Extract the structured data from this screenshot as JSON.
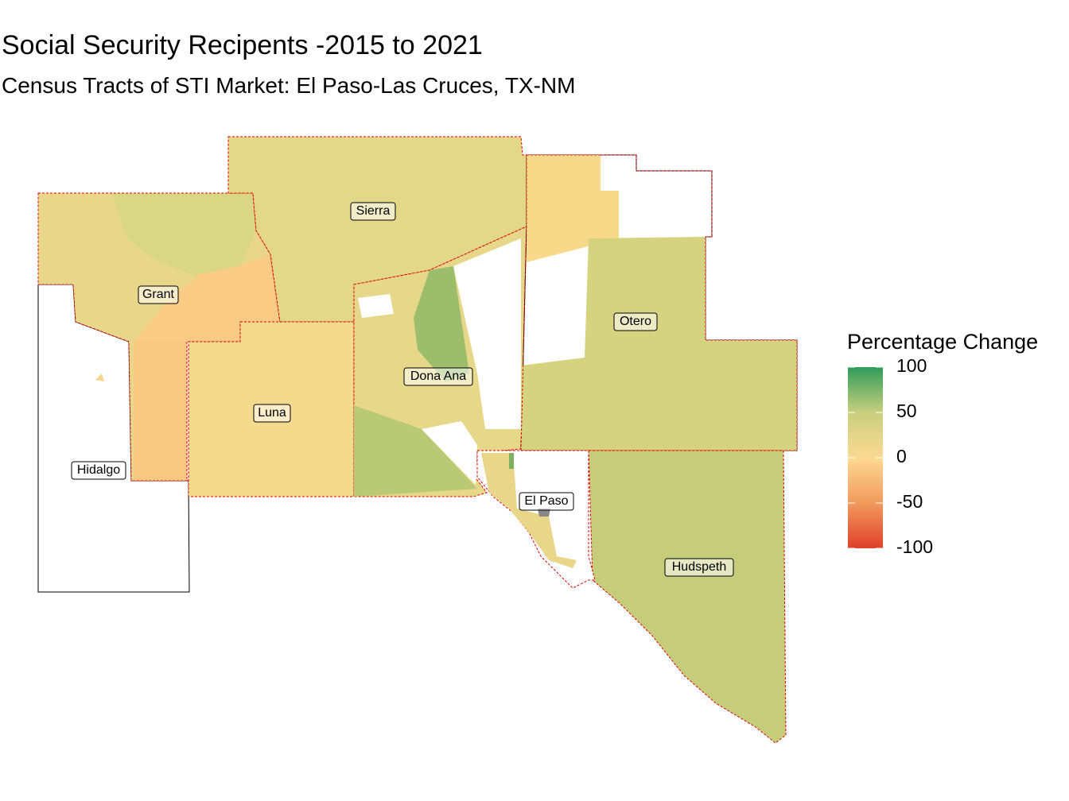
{
  "title": "Social Security Recipents -2015 to 2021",
  "subtitle": "Census Tracts of STI Market: El Paso-Las Cruces, TX-NM",
  "counties": [
    "Sierra",
    "Grant",
    "Otero",
    "Dona Ana",
    "Luna",
    "Hidalgo",
    "El Paso",
    "Hudspeth"
  ],
  "legend": {
    "title": "Percentage Change",
    "limits": [
      -100,
      100
    ],
    "ticks": [
      -100,
      -50,
      0,
      50,
      100
    ],
    "colors": [
      "#e0402a",
      "#f19a5e",
      "#fcd992",
      "#c9cf7e",
      "#2f9c5a"
    ]
  }
}
